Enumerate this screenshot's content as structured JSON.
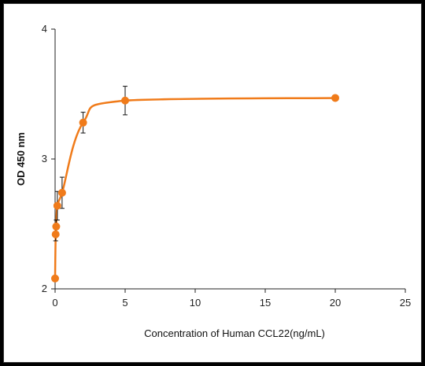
{
  "chart_data": {
    "type": "scatter",
    "title": "",
    "xlabel": "Concentration of Human CCL22(ng/mL)",
    "ylabel": "OD 450 nm",
    "xlim": [
      0,
      25
    ],
    "ylim": [
      2,
      4
    ],
    "xticks": [
      0,
      5,
      10,
      15,
      20,
      25
    ],
    "yticks": [
      2,
      3,
      4
    ],
    "grid": false,
    "legend": "none",
    "series": [
      {
        "color": "#F07B1A",
        "x": [
          0,
          0.04,
          0.08,
          0.16,
          0.5,
          2,
          5,
          20
        ],
        "y": [
          2.08,
          2.42,
          2.48,
          2.64,
          2.74,
          3.28,
          3.45,
          3.47
        ],
        "error": [
          0,
          0.05,
          0.05,
          0.11,
          0.12,
          0.08,
          0.11,
          0
        ]
      }
    ],
    "fit_curve": "smooth saturation curve through the points"
  }
}
